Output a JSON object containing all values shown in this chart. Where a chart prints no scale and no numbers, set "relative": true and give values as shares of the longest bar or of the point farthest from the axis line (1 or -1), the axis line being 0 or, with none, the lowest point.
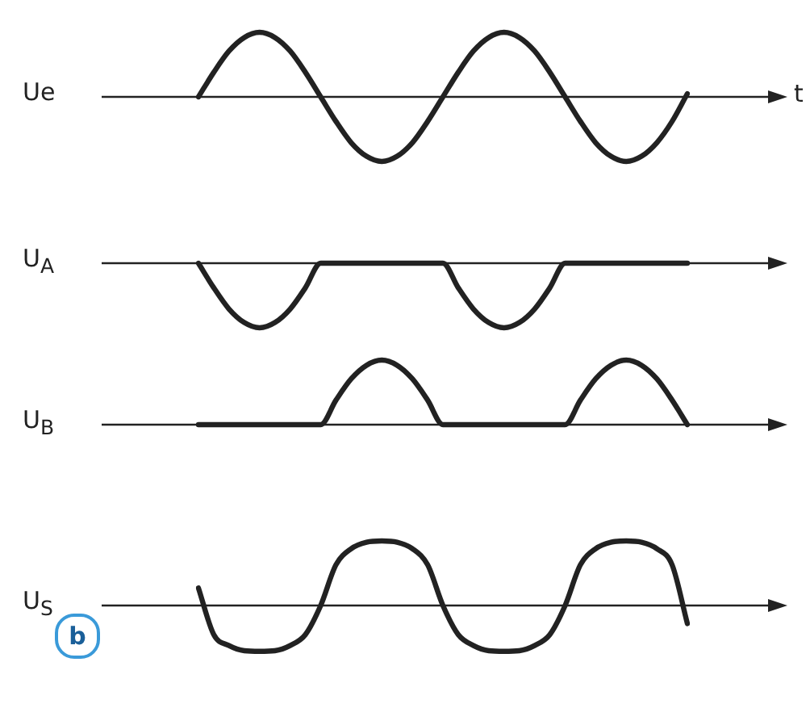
{
  "chart_data": [
    {
      "type": "line",
      "ylabel": "Ue",
      "xlabel": "t",
      "relative": true,
      "color": "#222222",
      "categories": [
        null,
        null,
        null,
        null,
        null,
        null,
        null,
        null,
        null,
        null,
        null,
        null,
        null,
        null,
        null,
        null,
        null,
        null,
        null,
        null,
        null,
        null,
        null,
        null,
        null,
        null,
        null,
        null,
        null,
        null,
        null,
        null,
        null
      ],
      "values": [
        0,
        0.38,
        0.71,
        0.92,
        1,
        0.92,
        0.71,
        0.38,
        0,
        -0.38,
        -0.71,
        -0.92,
        -1,
        -0.92,
        -0.71,
        -0.38,
        0,
        0.38,
        0.71,
        0.92,
        1,
        0.92,
        0.71,
        0.38,
        0,
        -0.38,
        -0.71,
        -0.92,
        -1,
        -0.92,
        -0.71,
        -0.38,
        0.05
      ]
    },
    {
      "type": "line",
      "ylabel": "U$_{A}$",
      "relative": true,
      "color": "#222222",
      "categories": [
        null,
        null,
        null,
        null,
        null,
        null,
        null,
        null,
        null,
        null,
        null,
        null,
        null,
        null,
        null,
        null,
        null,
        null,
        null,
        null,
        null,
        null,
        null,
        null,
        null,
        null,
        null,
        null,
        null,
        null,
        null,
        null,
        null
      ],
      "values": [
        0,
        -0.38,
        -0.71,
        -0.92,
        -1,
        -0.92,
        -0.71,
        -0.38,
        0,
        0,
        0,
        0,
        0,
        0,
        0,
        0,
        0,
        -0.38,
        -0.71,
        -0.92,
        -1,
        -0.92,
        -0.71,
        -0.38,
        0,
        0,
        0,
        0,
        0,
        0,
        0,
        0,
        0
      ]
    },
    {
      "type": "line",
      "ylabel": "U$_{B}$",
      "relative": true,
      "color": "#222222",
      "categories": [
        null,
        null,
        null,
        null,
        null,
        null,
        null,
        null,
        null,
        null,
        null,
        null,
        null,
        null,
        null,
        null,
        null,
        null,
        null,
        null,
        null,
        null,
        null,
        null,
        null,
        null,
        null,
        null,
        null,
        null,
        null,
        null,
        null
      ],
      "values": [
        0,
        0,
        0,
        0,
        0,
        0,
        0,
        0,
        0,
        0.38,
        0.71,
        0.92,
        1,
        0.92,
        0.71,
        0.38,
        0,
        0,
        0,
        0,
        0,
        0,
        0,
        0,
        0,
        0.38,
        0.71,
        0.92,
        1,
        0.92,
        0.71,
        0.38,
        0
      ]
    },
    {
      "type": "line",
      "ylabel": "U$_{S}$",
      "relative": true,
      "color": "#222222",
      "annotations": [
        "b"
      ],
      "categories": [
        null,
        null,
        null,
        null,
        null,
        null,
        null,
        null,
        null,
        null,
        null,
        null,
        null,
        null,
        null,
        null,
        null,
        null,
        null,
        null,
        null,
        null,
        null,
        null,
        null,
        null,
        null,
        null,
        null,
        null,
        null,
        null,
        null
      ],
      "values": [
        0.27,
        -0.45,
        -0.62,
        -0.7,
        -0.71,
        -0.7,
        -0.62,
        -0.45,
        0,
        0.63,
        0.88,
        0.98,
        1,
        0.98,
        0.88,
        0.63,
        0,
        -0.45,
        -0.62,
        -0.7,
        -0.71,
        -0.7,
        -0.62,
        -0.45,
        0,
        0.63,
        0.88,
        0.98,
        1,
        0.98,
        0.88,
        0.63,
        -0.28
      ]
    }
  ]
}
